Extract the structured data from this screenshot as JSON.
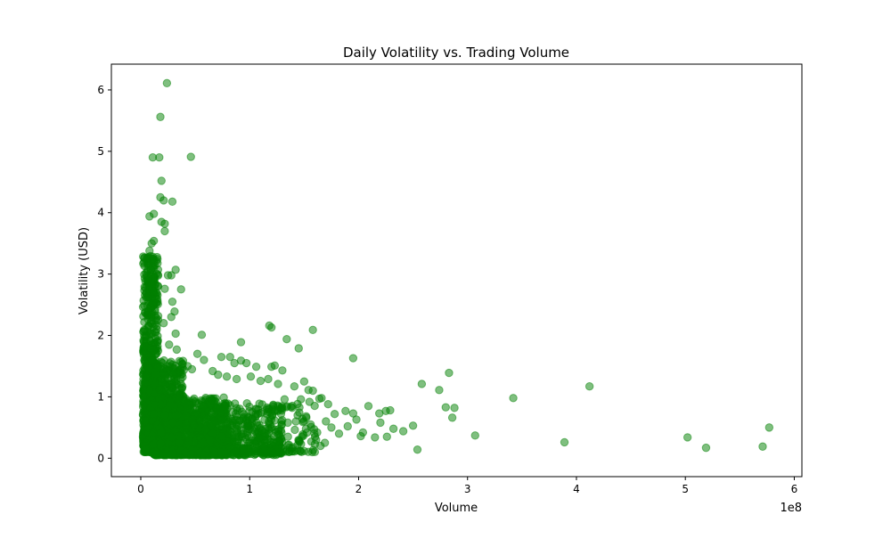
{
  "chart_data": {
    "type": "scatter",
    "title": "Daily Volatility vs. Trading Volume",
    "xlabel": "Volume",
    "ylabel": "Volatility (USD)",
    "x_offset_text": "1e8",
    "x_scale_factor": 100000000,
    "xlim": [
      -0.27,
      6.07
    ],
    "ylim": [
      -0.3,
      6.42
    ],
    "x_ticks": [
      0,
      1,
      2,
      3,
      4,
      5,
      6
    ],
    "y_ticks": [
      0,
      1,
      2,
      3,
      4,
      5,
      6
    ],
    "grid": false,
    "legend": "none",
    "marker_color": "#008000",
    "marker_alpha": 0.5,
    "points": [
      {
        "x": 0.24,
        "y": 6.11
      },
      {
        "x": 0.18,
        "y": 5.56
      },
      {
        "x": 0.11,
        "y": 4.9
      },
      {
        "x": 0.17,
        "y": 4.9
      },
      {
        "x": 0.46,
        "y": 4.91
      },
      {
        "x": 0.19,
        "y": 4.52
      },
      {
        "x": 0.18,
        "y": 4.25
      },
      {
        "x": 0.29,
        "y": 4.18
      },
      {
        "x": 0.21,
        "y": 4.2
      },
      {
        "x": 0.08,
        "y": 3.94
      },
      {
        "x": 0.12,
        "y": 3.98
      },
      {
        "x": 0.19,
        "y": 3.85
      },
      {
        "x": 0.22,
        "y": 3.82
      },
      {
        "x": 0.22,
        "y": 3.7
      },
      {
        "x": 0.12,
        "y": 3.54
      },
      {
        "x": 0.1,
        "y": 3.5
      },
      {
        "x": 0.08,
        "y": 3.38
      },
      {
        "x": 0.11,
        "y": 3.25
      },
      {
        "x": 0.07,
        "y": 3.14
      },
      {
        "x": 0.32,
        "y": 3.07
      },
      {
        "x": 0.25,
        "y": 2.98
      },
      {
        "x": 0.28,
        "y": 2.98
      },
      {
        "x": 0.37,
        "y": 2.75
      },
      {
        "x": 0.22,
        "y": 2.76
      },
      {
        "x": 0.29,
        "y": 2.55
      },
      {
        "x": 0.31,
        "y": 2.39
      },
      {
        "x": 0.28,
        "y": 2.3
      },
      {
        "x": 0.21,
        "y": 2.2
      },
      {
        "x": 0.05,
        "y": 2.7
      },
      {
        "x": 0.06,
        "y": 2.9
      },
      {
        "x": 0.14,
        "y": 2.6
      },
      {
        "x": 0.16,
        "y": 2.8
      },
      {
        "x": 0.32,
        "y": 2.03
      },
      {
        "x": 0.56,
        "y": 2.01
      },
      {
        "x": 0.26,
        "y": 1.85
      },
      {
        "x": 0.33,
        "y": 1.77
      },
      {
        "x": 0.92,
        "y": 1.89
      },
      {
        "x": 1.18,
        "y": 2.16
      },
      {
        "x": 1.2,
        "y": 2.13
      },
      {
        "x": 1.34,
        "y": 1.94
      },
      {
        "x": 1.45,
        "y": 1.79
      },
      {
        "x": 1.58,
        "y": 2.09
      },
      {
        "x": 1.95,
        "y": 1.63
      },
      {
        "x": 0.74,
        "y": 1.65
      },
      {
        "x": 0.82,
        "y": 1.65
      },
      {
        "x": 0.86,
        "y": 1.55
      },
      {
        "x": 0.92,
        "y": 1.59
      },
      {
        "x": 0.97,
        "y": 1.55
      },
      {
        "x": 1.06,
        "y": 1.49
      },
      {
        "x": 1.2,
        "y": 1.49
      },
      {
        "x": 1.23,
        "y": 1.51
      },
      {
        "x": 1.3,
        "y": 1.43
      },
      {
        "x": 0.38,
        "y": 1.53
      },
      {
        "x": 0.43,
        "y": 1.5
      },
      {
        "x": 0.47,
        "y": 1.45
      },
      {
        "x": 0.52,
        "y": 1.7
      },
      {
        "x": 0.58,
        "y": 1.6
      },
      {
        "x": 0.66,
        "y": 1.42
      },
      {
        "x": 0.71,
        "y": 1.36
      },
      {
        "x": 0.79,
        "y": 1.33
      },
      {
        "x": 0.88,
        "y": 1.29
      },
      {
        "x": 1.01,
        "y": 1.33
      },
      {
        "x": 1.1,
        "y": 1.26
      },
      {
        "x": 1.17,
        "y": 1.29
      },
      {
        "x": 1.26,
        "y": 1.21
      },
      {
        "x": 1.41,
        "y": 1.17
      },
      {
        "x": 1.5,
        "y": 1.25
      },
      {
        "x": 1.54,
        "y": 1.11
      },
      {
        "x": 1.58,
        "y": 1.1
      },
      {
        "x": 1.66,
        "y": 0.98
      },
      {
        "x": 1.72,
        "y": 0.88
      },
      {
        "x": 1.88,
        "y": 0.77
      },
      {
        "x": 1.95,
        "y": 0.73
      },
      {
        "x": 2.09,
        "y": 0.85
      },
      {
        "x": 2.19,
        "y": 0.73
      },
      {
        "x": 2.25,
        "y": 0.77
      },
      {
        "x": 2.29,
        "y": 0.78
      },
      {
        "x": 2.2,
        "y": 0.58
      },
      {
        "x": 2.32,
        "y": 0.48
      },
      {
        "x": 2.41,
        "y": 0.44
      },
      {
        "x": 2.5,
        "y": 0.53
      },
      {
        "x": 2.04,
        "y": 0.42
      },
      {
        "x": 2.02,
        "y": 0.36
      },
      {
        "x": 2.15,
        "y": 0.34
      },
      {
        "x": 2.26,
        "y": 0.35
      },
      {
        "x": 2.54,
        "y": 0.14
      },
      {
        "x": 2.58,
        "y": 1.21
      },
      {
        "x": 2.74,
        "y": 1.11
      },
      {
        "x": 2.83,
        "y": 1.39
      },
      {
        "x": 2.8,
        "y": 0.83
      },
      {
        "x": 2.88,
        "y": 0.82
      },
      {
        "x": 2.86,
        "y": 0.66
      },
      {
        "x": 3.07,
        "y": 0.37
      },
      {
        "x": 3.42,
        "y": 0.98
      },
      {
        "x": 3.89,
        "y": 0.26
      },
      {
        "x": 4.12,
        "y": 1.17
      },
      {
        "x": 5.02,
        "y": 0.34
      },
      {
        "x": 5.19,
        "y": 0.17
      },
      {
        "x": 5.71,
        "y": 0.19
      },
      {
        "x": 5.77,
        "y": 0.5
      },
      {
        "x": 1.56,
        "y": 0.55
      },
      {
        "x": 1.62,
        "y": 0.42
      },
      {
        "x": 1.7,
        "y": 0.6
      },
      {
        "x": 1.75,
        "y": 0.5
      },
      {
        "x": 1.82,
        "y": 0.4
      },
      {
        "x": 1.48,
        "y": 0.35
      },
      {
        "x": 1.52,
        "y": 0.66
      },
      {
        "x": 1.35,
        "y": 0.58
      },
      {
        "x": 1.39,
        "y": 0.82
      },
      {
        "x": 1.44,
        "y": 0.7
      },
      {
        "x": 1.32,
        "y": 0.96
      },
      {
        "x": 1.26,
        "y": 0.28
      },
      {
        "x": 1.22,
        "y": 0.08
      },
      {
        "x": 1.13,
        "y": 0.2
      },
      {
        "x": 1.36,
        "y": 0.22
      },
      {
        "x": 1.6,
        "y": 0.35
      },
      {
        "x": 1.64,
        "y": 0.97
      },
      {
        "x": 1.47,
        "y": 0.96
      },
      {
        "x": 1.61,
        "y": 0.3
      },
      {
        "x": 1.65,
        "y": 0.2
      },
      {
        "x": 1.98,
        "y": 0.63
      },
      {
        "x": 1.9,
        "y": 0.52
      },
      {
        "x": 1.78,
        "y": 0.72
      },
      {
        "x": 1.69,
        "y": 0.25
      }
    ],
    "clusters": [
      {
        "x_range": [
          0.02,
          0.16
        ],
        "y_range": [
          0.2,
          3.3
        ],
        "count": 700,
        "seed": 11
      },
      {
        "x_range": [
          0.02,
          0.4
        ],
        "y_range": [
          0.1,
          1.6
        ],
        "count": 700,
        "seed": 23
      },
      {
        "x_range": [
          0.1,
          0.8
        ],
        "y_range": [
          0.05,
          1.0
        ],
        "count": 900,
        "seed": 37
      },
      {
        "x_range": [
          0.4,
          1.3
        ],
        "y_range": [
          0.05,
          0.9
        ],
        "count": 450,
        "seed": 41
      },
      {
        "x_range": [
          0.8,
          1.6
        ],
        "y_range": [
          0.1,
          0.95
        ],
        "count": 140,
        "seed": 53
      }
    ]
  }
}
